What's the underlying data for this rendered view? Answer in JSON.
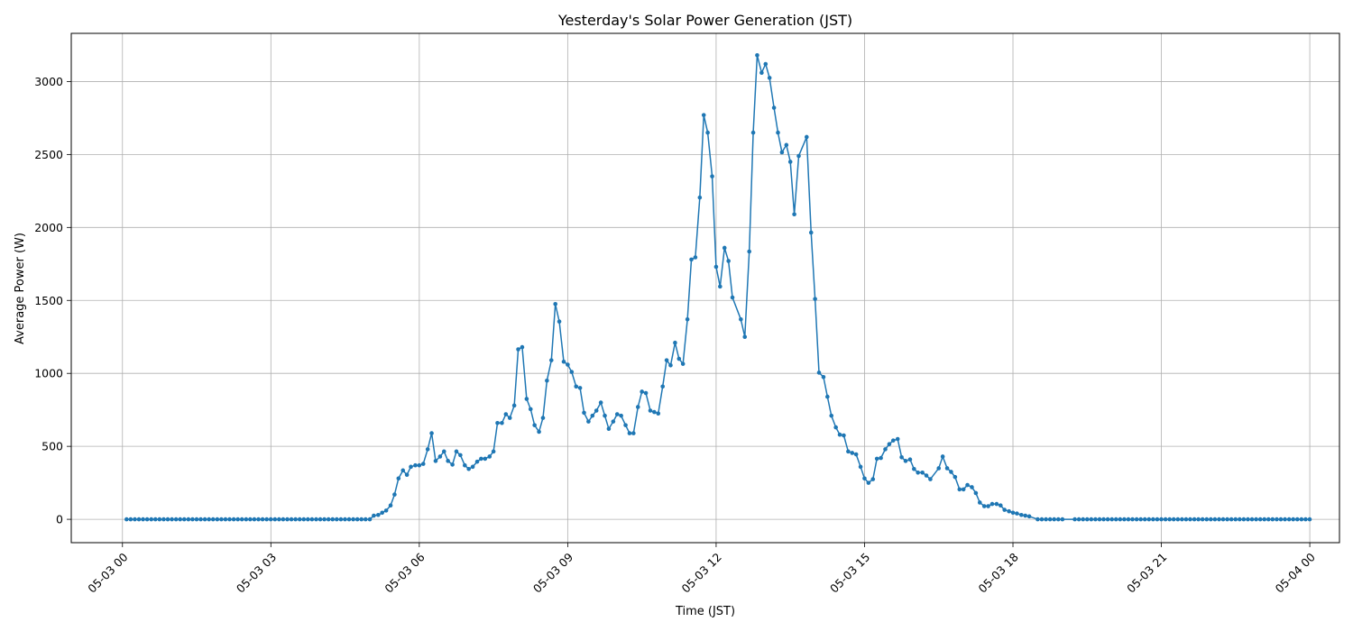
{
  "chart_data": {
    "type": "line",
    "title": "Yesterday's Solar Power Generation (JST)",
    "xlabel": "Time (JST)",
    "ylabel": "Average Power (W)",
    "x_tick_labels": [
      "05-03 00",
      "05-03 03",
      "05-03 06",
      "05-03 09",
      "05-03 12",
      "05-03 15",
      "05-03 18",
      "05-03 21",
      "05-04 00"
    ],
    "x_tick_hours": [
      0,
      3,
      6,
      9,
      12,
      15,
      18,
      21,
      24
    ],
    "y_ticks": [
      0,
      500,
      1000,
      1500,
      2000,
      2500,
      3000
    ],
    "ylim": [
      -160,
      3330
    ],
    "xlim_hours": [
      -1.035,
      24.6
    ],
    "grid": true,
    "line_color": "#1f77b4",
    "marker": "circle",
    "series": [
      {
        "points": [
          [
            5.0,
            0
          ],
          [
            5.08,
            25
          ],
          [
            5.17,
            30
          ],
          [
            5.25,
            45
          ],
          [
            5.33,
            60
          ],
          [
            5.42,
            95
          ],
          [
            5.5,
            170
          ],
          [
            5.58,
            280
          ],
          [
            5.67,
            335
          ],
          [
            5.75,
            305
          ],
          [
            5.83,
            360
          ],
          [
            5.92,
            370
          ],
          [
            6.0,
            370
          ],
          [
            6.08,
            380
          ],
          [
            6.17,
            480
          ],
          [
            6.25,
            590
          ],
          [
            6.33,
            400
          ],
          [
            6.42,
            430
          ],
          [
            6.5,
            465
          ],
          [
            6.58,
            400
          ],
          [
            6.67,
            375
          ],
          [
            6.75,
            465
          ],
          [
            6.83,
            440
          ],
          [
            6.92,
            370
          ],
          [
            7.0,
            345
          ],
          [
            7.08,
            360
          ],
          [
            7.17,
            395
          ],
          [
            7.25,
            415
          ],
          [
            7.33,
            415
          ],
          [
            7.42,
            430
          ],
          [
            7.5,
            465
          ],
          [
            7.58,
            660
          ],
          [
            7.67,
            660
          ],
          [
            7.75,
            720
          ],
          [
            7.83,
            695
          ],
          [
            7.92,
            780
          ],
          [
            8.0,
            1165
          ],
          [
            8.08,
            1180
          ],
          [
            8.17,
            825
          ],
          [
            8.25,
            755
          ],
          [
            8.33,
            645
          ],
          [
            8.42,
            600
          ],
          [
            8.5,
            695
          ],
          [
            8.58,
            950
          ],
          [
            8.67,
            1090
          ],
          [
            8.75,
            1475
          ],
          [
            8.83,
            1355
          ],
          [
            8.92,
            1080
          ],
          [
            9.0,
            1060
          ],
          [
            9.08,
            1010
          ],
          [
            9.17,
            910
          ],
          [
            9.25,
            900
          ],
          [
            9.33,
            730
          ],
          [
            9.42,
            670
          ],
          [
            9.5,
            710
          ],
          [
            9.58,
            745
          ],
          [
            9.67,
            800
          ],
          [
            9.75,
            710
          ],
          [
            9.83,
            620
          ],
          [
            9.92,
            670
          ],
          [
            10.0,
            720
          ],
          [
            10.08,
            710
          ],
          [
            10.17,
            645
          ],
          [
            10.25,
            590
          ],
          [
            10.33,
            590
          ],
          [
            10.42,
            770
          ],
          [
            10.5,
            875
          ],
          [
            10.58,
            865
          ],
          [
            10.67,
            745
          ],
          [
            10.75,
            735
          ],
          [
            10.83,
            725
          ],
          [
            10.92,
            910
          ],
          [
            11.0,
            1090
          ],
          [
            11.08,
            1055
          ],
          [
            11.17,
            1210
          ],
          [
            11.25,
            1100
          ],
          [
            11.33,
            1065
          ],
          [
            11.42,
            1370
          ],
          [
            11.5,
            1780
          ],
          [
            11.58,
            1795
          ],
          [
            11.67,
            2205
          ],
          [
            11.75,
            2770
          ],
          [
            11.83,
            2650
          ],
          [
            11.92,
            2350
          ],
          [
            12.0,
            1730
          ],
          [
            12.08,
            1595
          ],
          [
            12.17,
            1860
          ],
          [
            12.25,
            1770
          ],
          [
            12.33,
            1520
          ],
          [
            12.5,
            1370
          ],
          [
            12.58,
            1250
          ],
          [
            12.67,
            1835
          ],
          [
            12.75,
            2650
          ],
          [
            12.83,
            3180
          ],
          [
            12.92,
            3060
          ],
          [
            13.0,
            3120
          ],
          [
            13.08,
            3025
          ],
          [
            13.17,
            2820
          ],
          [
            13.25,
            2650
          ],
          [
            13.33,
            2515
          ],
          [
            13.42,
            2565
          ],
          [
            13.5,
            2450
          ],
          [
            13.58,
            2090
          ],
          [
            13.67,
            2490
          ],
          [
            13.83,
            2620
          ],
          [
            13.92,
            1965
          ],
          [
            14.0,
            1510
          ],
          [
            14.08,
            1005
          ],
          [
            14.17,
            975
          ],
          [
            14.25,
            840
          ],
          [
            14.33,
            710
          ],
          [
            14.42,
            630
          ],
          [
            14.5,
            580
          ],
          [
            14.58,
            575
          ],
          [
            14.67,
            465
          ],
          [
            14.75,
            455
          ],
          [
            14.83,
            445
          ],
          [
            14.92,
            360
          ],
          [
            15.0,
            280
          ],
          [
            15.08,
            250
          ],
          [
            15.17,
            275
          ],
          [
            15.25,
            415
          ],
          [
            15.33,
            420
          ],
          [
            15.42,
            480
          ],
          [
            15.5,
            515
          ],
          [
            15.58,
            540
          ],
          [
            15.67,
            550
          ],
          [
            15.75,
            425
          ],
          [
            15.83,
            400
          ],
          [
            15.92,
            410
          ],
          [
            16.0,
            345
          ],
          [
            16.08,
            320
          ],
          [
            16.17,
            320
          ],
          [
            16.25,
            300
          ],
          [
            16.33,
            275
          ],
          [
            16.5,
            350
          ],
          [
            16.58,
            430
          ],
          [
            16.67,
            350
          ],
          [
            16.75,
            325
          ],
          [
            16.83,
            290
          ],
          [
            16.92,
            205
          ],
          [
            17.0,
            205
          ],
          [
            17.08,
            235
          ],
          [
            17.17,
            220
          ],
          [
            17.25,
            180
          ],
          [
            17.33,
            115
          ],
          [
            17.42,
            90
          ],
          [
            17.5,
            90
          ],
          [
            17.58,
            105
          ],
          [
            17.67,
            105
          ],
          [
            17.75,
            95
          ],
          [
            17.83,
            65
          ],
          [
            17.92,
            55
          ],
          [
            18.0,
            45
          ],
          [
            18.08,
            40
          ],
          [
            18.17,
            30
          ],
          [
            18.25,
            25
          ],
          [
            18.33,
            20
          ]
        ]
      }
    ],
    "zero_ranges_hours": [
      [
        0.083,
        4.917,
        0.0833
      ],
      [
        18.5,
        19.0,
        0.0833
      ],
      [
        19.25,
        24.0,
        0.0833
      ]
    ]
  }
}
